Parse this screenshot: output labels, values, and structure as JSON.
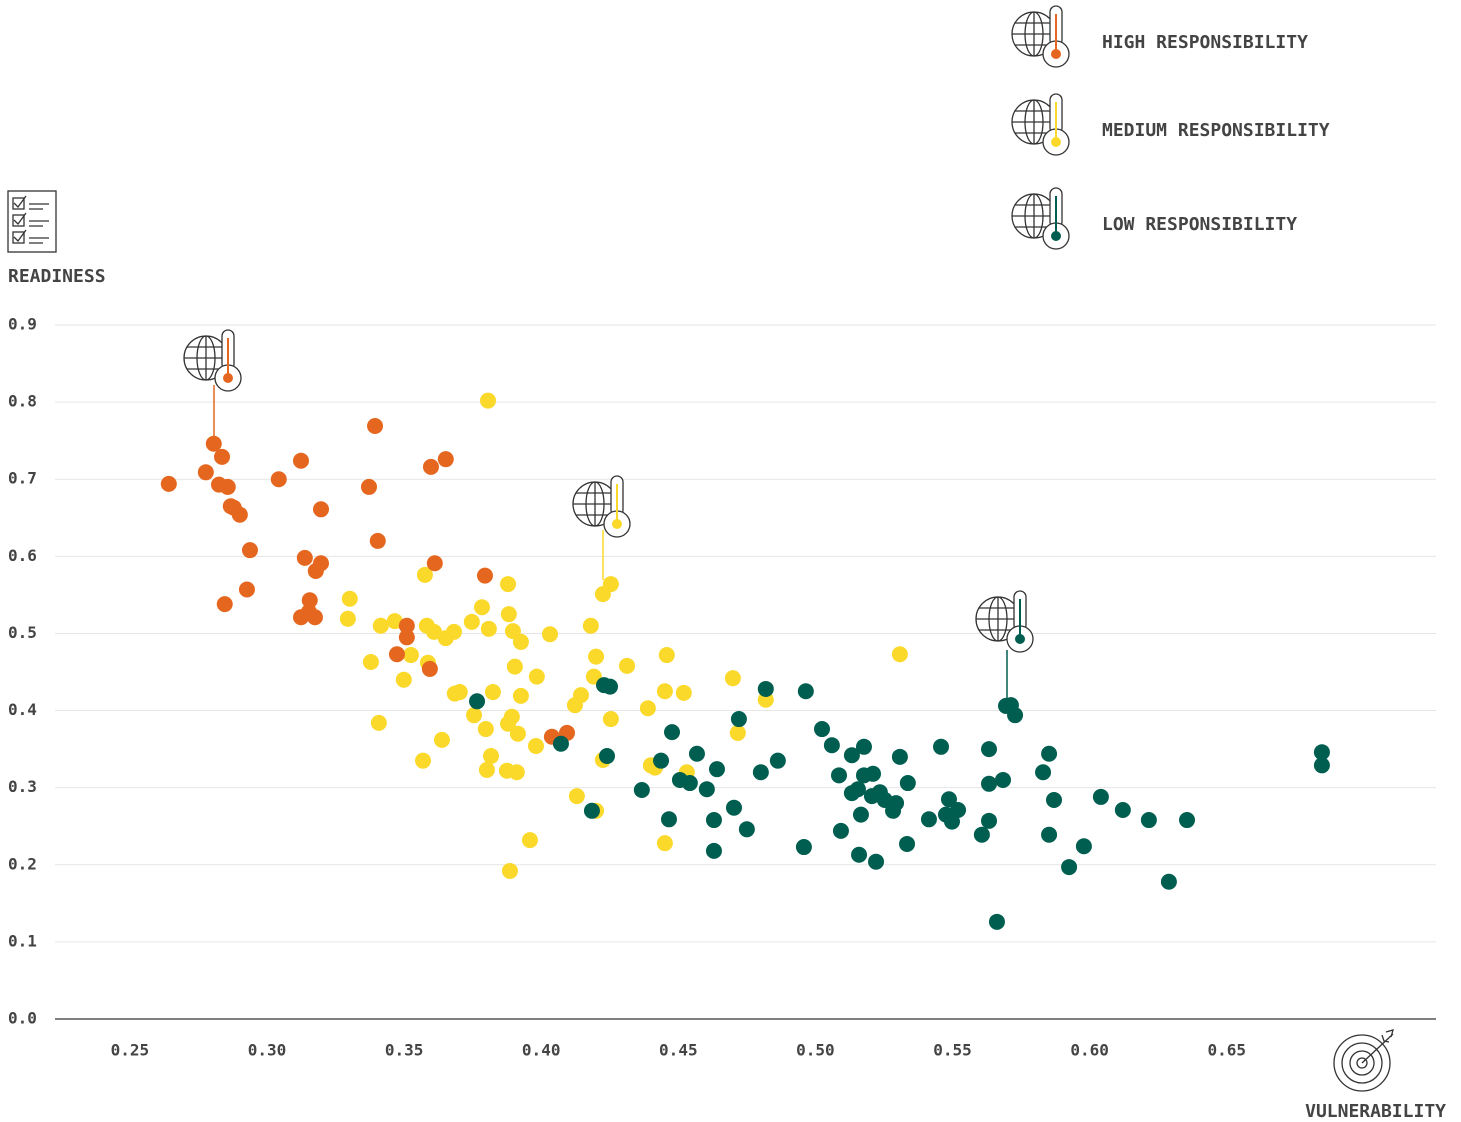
{
  "chart_data": {
    "type": "scatter",
    "x_label": "VULNERABILITY",
    "y_label": "READINESS",
    "xlim": [
      0.2227,
      0.7263
    ],
    "ylim": [
      0,
      0.9
    ],
    "xticks": [
      0.25,
      {
        "value": 0.3,
        "label": "0.30"
      },
      0.35,
      {
        "value": 0.4,
        "label": "0.40"
      },
      0.45,
      {
        "value": 0.5,
        "label": "0.50"
      },
      0.55,
      {
        "value": 0.6,
        "label": "0.60"
      },
      0.65
    ],
    "yticks": [
      {
        "value": 0,
        "label": "0.0"
      },
      0.1,
      0.2,
      0.3,
      0.4,
      0.5,
      0.6,
      0.7,
      0.8,
      0.9
    ],
    "grid": true,
    "legend": "top-right",
    "series": [
      {
        "name": "HIGH RESPONSIBILITY",
        "color": "#e5661e",
        "x": [
          0.2642,
          0.2777,
          0.2806,
          0.2836,
          0.2825,
          0.2857,
          0.2868,
          0.2879,
          0.2901,
          0.2938,
          0.2927,
          0.2846,
          0.3043,
          0.3124,
          0.3197,
          0.3138,
          0.3197,
          0.3178,
          0.3156,
          0.3153,
          0.3124,
          0.3175,
          0.3394,
          0.3372,
          0.3404,
          0.3598,
          0.3652,
          0.3612,
          0.3795,
          0.351,
          0.351,
          0.3474,
          0.3594,
          0.4039,
          0.4094
        ],
        "values": [
          0.694,
          0.709,
          0.746,
          0.729,
          0.693,
          0.69,
          0.665,
          0.663,
          0.654,
          0.608,
          0.557,
          0.538,
          0.7,
          0.724,
          0.661,
          0.598,
          0.591,
          0.581,
          0.543,
          0.528,
          0.521,
          0.521,
          0.769,
          0.69,
          0.62,
          0.716,
          0.726,
          0.591,
          0.575,
          0.51,
          0.495,
          0.473,
          0.454,
          0.366,
          0.371
        ]
      },
      {
        "name": "MEDIUM RESPONSIBILITY",
        "color": "#fbd92a",
        "x": [
          0.3806,
          0.3879,
          0.3302,
          0.3295,
          0.3379,
          0.3415,
          0.3466,
          0.3525,
          0.3499,
          0.3408,
          0.3569,
          0.3576,
          0.3583,
          0.3609,
          0.3587,
          0.3652,
          0.3682,
          0.3685,
          0.3703,
          0.3638,
          0.3747,
          0.3784,
          0.3809,
          0.3755,
          0.3798,
          0.3824,
          0.3802,
          0.3817,
          0.3882,
          0.3897,
          0.3926,
          0.3904,
          0.3926,
          0.3879,
          0.3893,
          0.3915,
          0.3875,
          0.3911,
          0.3886,
          0.3984,
          0.3981,
          0.3959,
          0.4032,
          0.4181,
          0.42,
          0.4192,
          0.4145,
          0.4123,
          0.4254,
          0.4225,
          0.4254,
          0.4313,
          0.413,
          0.42,
          0.4225,
          0.4458,
          0.4389,
          0.4451,
          0.452,
          0.44,
          0.4415,
          0.4531,
          0.4451,
          0.4699,
          0.4717,
          0.4819,
          0.5308
        ],
        "values": [
          0.802,
          0.564,
          0.545,
          0.519,
          0.463,
          0.51,
          0.516,
          0.472,
          0.44,
          0.384,
          0.335,
          0.576,
          0.51,
          0.502,
          0.462,
          0.494,
          0.502,
          0.422,
          0.424,
          0.362,
          0.515,
          0.534,
          0.506,
          0.394,
          0.376,
          0.424,
          0.323,
          0.341,
          0.525,
          0.503,
          0.489,
          0.457,
          0.419,
          0.383,
          0.392,
          0.37,
          0.322,
          0.32,
          0.192,
          0.444,
          0.354,
          0.232,
          0.499,
          0.51,
          0.47,
          0.444,
          0.42,
          0.407,
          0.389,
          0.551,
          0.564,
          0.458,
          0.289,
          0.27,
          0.336,
          0.472,
          0.403,
          0.425,
          0.423,
          0.329,
          0.326,
          0.32,
          0.228,
          0.442,
          0.371,
          0.414,
          0.473
        ]
      },
      {
        "name": "LOW RESPONSIBILITY",
        "color": "#005e50",
        "x": [
          0.3766,
          0.4072,
          0.4185,
          0.4229,
          0.4251,
          0.424,
          0.4367,
          0.4437,
          0.4477,
          0.4466,
          0.4506,
          0.4542,
          0.4568,
          0.4604,
          0.4641,
          0.463,
          0.463,
          0.4703,
          0.4721,
          0.475,
          0.4801,
          0.4819,
          0.4863,
          0.4965,
          0.4958,
          0.5024,
          0.506,
          0.5086,
          0.5093,
          0.5133,
          0.5133,
          0.5155,
          0.5159,
          0.5166,
          0.5177,
          0.5177,
          0.521,
          0.5206,
          0.5221,
          0.5235,
          0.5253,
          0.5283,
          0.5294,
          0.5308,
          0.5337,
          0.5334,
          0.5414,
          0.5458,
          0.5487,
          0.5476,
          0.5498,
          0.552,
          0.5607,
          0.5633,
          0.5633,
          0.5633,
          0.5684,
          0.5662,
          0.5695,
          0.5713,
          0.5728,
          0.583,
          0.5852,
          0.587,
          0.5852,
          0.5979,
          0.5925,
          0.6041,
          0.6121,
          0.6216,
          0.6355,
          0.6289,
          0.6847,
          0.6847
        ],
        "values": [
          0.412,
          0.357,
          0.27,
          0.433,
          0.431,
          0.341,
          0.297,
          0.335,
          0.372,
          0.259,
          0.31,
          0.306,
          0.344,
          0.298,
          0.324,
          0.258,
          0.218,
          0.274,
          0.389,
          0.246,
          0.32,
          0.428,
          0.335,
          0.425,
          0.223,
          0.376,
          0.355,
          0.316,
          0.244,
          0.342,
          0.293,
          0.298,
          0.213,
          0.265,
          0.353,
          0.316,
          0.318,
          0.289,
          0.204,
          0.294,
          0.284,
          0.27,
          0.28,
          0.34,
          0.306,
          0.227,
          0.259,
          0.353,
          0.285,
          0.265,
          0.256,
          0.271,
          0.239,
          0.35,
          0.305,
          0.257,
          0.31,
          0.126,
          0.406,
          0.407,
          0.394,
          0.32,
          0.344,
          0.284,
          0.239,
          0.224,
          0.197,
          0.288,
          0.271,
          0.258,
          0.258,
          0.178,
          0.346,
          0.329
        ]
      }
    ]
  }
}
